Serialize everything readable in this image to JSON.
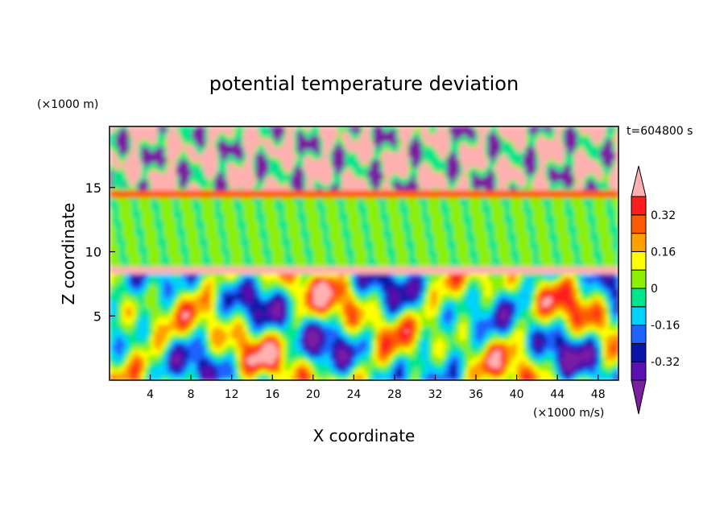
{
  "chart_data": {
    "type": "heatmap",
    "title": "potential temperature deviation",
    "xlabel": "X coordinate",
    "ylabel": "Z coordinate",
    "x_unit": "(×1000 m/s)",
    "y_unit": "(×1000 m)",
    "time_label": "t=604800 s",
    "xlim": [
      0,
      50
    ],
    "ylim": [
      0,
      19.75
    ],
    "x_ticks": [
      4,
      8,
      12,
      16,
      20,
      24,
      28,
      32,
      36,
      40,
      44,
      48
    ],
    "y_ticks": [
      5,
      10,
      15
    ],
    "colorbar": {
      "levels": [
        -0.4,
        -0.32,
        -0.24,
        -0.16,
        -0.08,
        0,
        0.08,
        0.16,
        0.24,
        0.32,
        0.4
      ],
      "tick_labels": [
        "-0.32",
        "-0.16",
        "0",
        "0.16",
        "0.32"
      ],
      "tick_values": [
        -0.32,
        -0.16,
        0,
        0.16,
        0.32
      ],
      "colors": [
        "#7a1fa2",
        "#5a10b0",
        "#0a14a8",
        "#1e64ff",
        "#00d2ff",
        "#00e68c",
        "#8cf000",
        "#ffff00",
        "#ffa000",
        "#ff5a00",
        "#ff1e1e",
        "#ffb0b0"
      ]
    },
    "description_layers": [
      {
        "z": [
          0,
          8.3
        ],
        "pattern": "convective eddies"
      },
      {
        "z": [
          8.3,
          8.8
        ],
        "value": 0.4
      },
      {
        "z": [
          8.8,
          14.2
        ],
        "value": 0.04
      },
      {
        "z": [
          14.2,
          14.9
        ],
        "value": 0.3
      },
      {
        "z": [
          14.9,
          19.75
        ],
        "pattern": "mixed pink/purple"
      }
    ]
  }
}
